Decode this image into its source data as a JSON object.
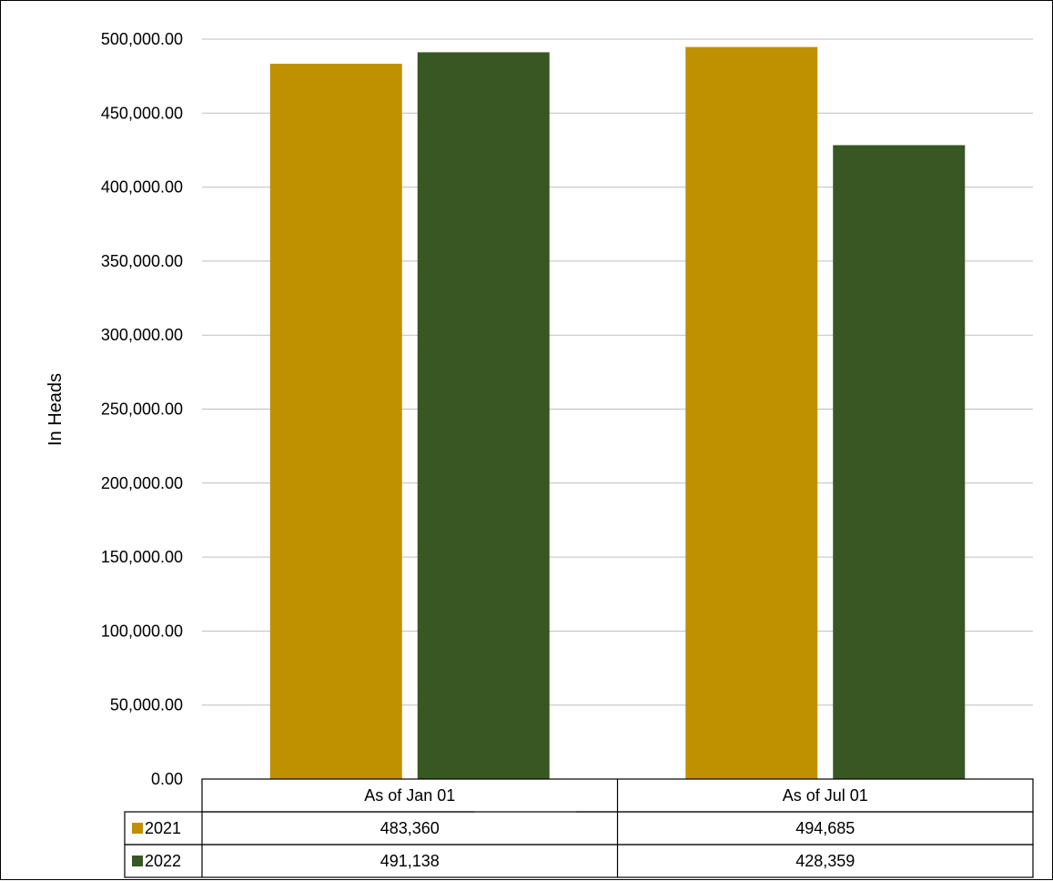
{
  "chart_data": {
    "type": "bar",
    "categories": [
      "As of Jan 01",
      "As of Jul 01"
    ],
    "series": [
      {
        "name": "2021",
        "values": [
          483360,
          494685
        ],
        "color": "#BF9000",
        "labels": [
          "483,360",
          "494,685"
        ]
      },
      {
        "name": "2022",
        "values": [
          491138,
          428359
        ],
        "color": "#385723",
        "labels": [
          "491,138",
          "428,359"
        ]
      }
    ],
    "ylabel": "In Heads",
    "ylim": [
      0,
      500000
    ],
    "yticks": [
      0,
      50000,
      100000,
      150000,
      200000,
      250000,
      300000,
      350000,
      400000,
      450000,
      500000
    ],
    "ytick_labels": [
      "0.00",
      "50,000.00",
      "100,000.00",
      "150,000.00",
      "200,000.00",
      "250,000.00",
      "300,000.00",
      "350,000.00",
      "400,000.00",
      "450,000.00",
      "500,000.00"
    ],
    "grid": true,
    "gridline_color": "#BFBFBF",
    "legend": "data-table"
  }
}
